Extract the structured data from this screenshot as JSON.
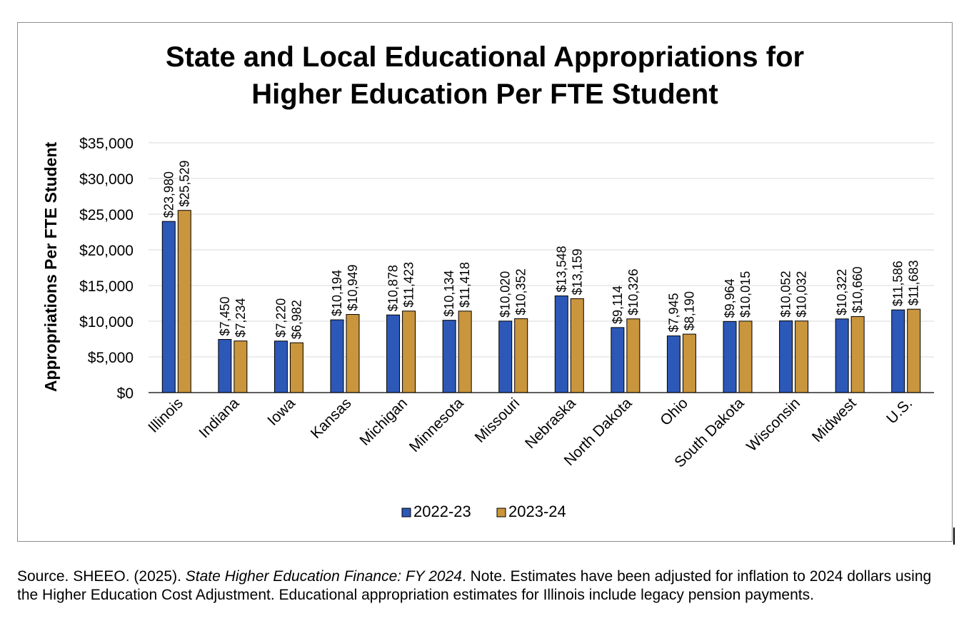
{
  "chart_data": {
    "type": "bar",
    "title_lines": [
      "State and Local Educational Appropriations for",
      "Higher Education Per FTE Student"
    ],
    "ylabel": "Appropriations Per FTE Student",
    "xlabel": "",
    "ylim": [
      0,
      35000
    ],
    "ytick_values": [
      0,
      5000,
      10000,
      15000,
      20000,
      25000,
      30000,
      35000
    ],
    "ytick_labels": [
      "$0",
      "$5,000",
      "$10,000",
      "$15,000",
      "$20,000",
      "$25,000",
      "$30,000",
      "$35,000"
    ],
    "grid": "horizontal",
    "legend_position": "bottom",
    "categories": [
      "Illinois",
      "Indiana",
      "Iowa",
      "Kansas",
      "Michigan",
      "Minnesota",
      "Missouri",
      "Nebraska",
      "North Dakota",
      "Ohio",
      "South Dakota",
      "Wisconsin",
      "Midwest",
      "U.S."
    ],
    "series": [
      {
        "name": "2022-23",
        "color": "#2c58b8",
        "values": [
          23980,
          7450,
          7220,
          10194,
          10878,
          10134,
          10020,
          13548,
          9114,
          7945,
          9964,
          10052,
          10322,
          11586
        ],
        "labels": [
          "$23,980",
          "$7,450",
          "$7,220",
          "$10,194",
          "$10,878",
          "$10,134",
          "$10,020",
          "$13,548",
          "$9,114",
          "$7,945",
          "$9,964",
          "$10,052",
          "$10,322",
          "$11,586"
        ]
      },
      {
        "name": "2023-24",
        "color": "#c9953d",
        "values": [
          25529,
          7234,
          6982,
          10949,
          11423,
          11418,
          10352,
          13159,
          10326,
          8190,
          10015,
          10032,
          10660,
          11683
        ],
        "labels": [
          "$25,529",
          "$7,234",
          "$6,982",
          "$10,949",
          "$11,423",
          "$11,418",
          "$10,352",
          "$13,159",
          "$10,326",
          "$8,190",
          "$10,015",
          "$10,032",
          "$10,660",
          "$11,683"
        ]
      }
    ]
  },
  "source_note": {
    "prefix": "Source. SHEEO. (2025). ",
    "italic": "State Higher Education Finance: FY 2024",
    "suffix": ". Note. Estimates have been adjusted for inflation to 2024 dollars using the Higher Education Cost Adjustment. Educational appropriation estimates for Illinois include legacy pension payments."
  }
}
